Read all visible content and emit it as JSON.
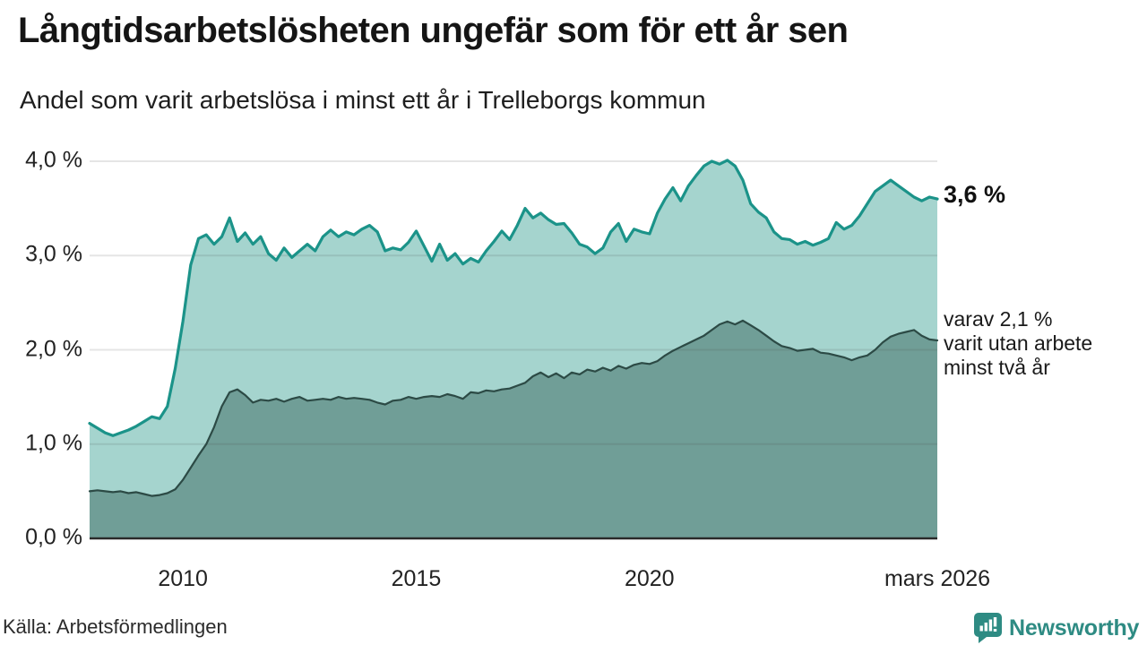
{
  "header": {
    "title": "Långtidsarbetslösheten ungefär som för ett år sen",
    "subtitle": "Andel som varit arbetslösa i minst ett år i Trelleborgs kommun"
  },
  "annotations": {
    "latest_total": "3,6 %",
    "latest_two_year_lines": [
      "varav 2,1 %",
      "varit utan arbete",
      "minst två år"
    ]
  },
  "footer": {
    "source": "Källa: Arbetsförmedlingen",
    "brand": "Newsworthy"
  },
  "colors": {
    "total_line": "#1b9389",
    "total_fill": "#a5d4ce",
    "two_year_line": "#2c4a45",
    "two_year_fill": "#709e97",
    "grid": "#444444",
    "grid_opacity": 0.14,
    "axis_line": "#2a2a2a",
    "brand": "#2e8b83",
    "text": "#222222"
  },
  "chart_data": {
    "type": "area",
    "title": "Långtidsarbetslösheten ungefär som för ett år sen",
    "subtitle": "Andel som varit arbetslösa i minst ett år i Trelleborgs kommun",
    "source": "Källa: Arbetsförmedlingen",
    "x_unit": "decimal year, monthly share of population, Trelleborgs kommun",
    "x_start": 2008.0,
    "x_end": 2026.17,
    "ylim": [
      0,
      4.0
    ],
    "grid": true,
    "legend_position": "right-annotations",
    "yticks": [
      {
        "value": 0,
        "label": "0,0 %"
      },
      {
        "value": 1.0,
        "label": "1,0 %"
      },
      {
        "value": 2.0,
        "label": "2,0 %"
      },
      {
        "value": 3.0,
        "label": "3,0 %"
      },
      {
        "value": 4.0,
        "label": "4,0 %"
      }
    ],
    "xticks": [
      {
        "value": 2010,
        "label": "2010"
      },
      {
        "value": 2015,
        "label": "2015"
      },
      {
        "value": 2020,
        "label": "2020"
      },
      {
        "value": 2026.17,
        "label": "mars 2026"
      }
    ],
    "series": [
      {
        "name": "Arbetslösa minst ett år",
        "latest_value": 3.6,
        "latest_label": "3,6 %",
        "line_color": "#1b9389",
        "fill_color": "#a5d4ce",
        "line_width": 3.2,
        "values": [
          1.22,
          1.17,
          1.12,
          1.09,
          1.12,
          1.15,
          1.19,
          1.24,
          1.29,
          1.27,
          1.4,
          1.8,
          2.3,
          2.9,
          3.18,
          3.22,
          3.12,
          3.2,
          3.4,
          3.15,
          3.24,
          3.12,
          3.2,
          3.02,
          2.95,
          3.08,
          2.98,
          3.05,
          3.12,
          3.05,
          3.2,
          3.27,
          3.2,
          3.25,
          3.22,
          3.28,
          3.32,
          3.25,
          3.05,
          3.08,
          3.06,
          3.14,
          3.26,
          3.1,
          2.94,
          3.12,
          2.95,
          3.02,
          2.91,
          2.97,
          2.93,
          3.05,
          3.15,
          3.26,
          3.17,
          3.32,
          3.5,
          3.4,
          3.45,
          3.38,
          3.33,
          3.34,
          3.24,
          3.12,
          3.09,
          3.02,
          3.08,
          3.25,
          3.34,
          3.15,
          3.28,
          3.25,
          3.23,
          3.45,
          3.6,
          3.72,
          3.58,
          3.74,
          3.85,
          3.95,
          4.0,
          3.97,
          4.01,
          3.95,
          3.8,
          3.55,
          3.46,
          3.4,
          3.25,
          3.18,
          3.17,
          3.12,
          3.15,
          3.11,
          3.14,
          3.18,
          3.35,
          3.28,
          3.32,
          3.42,
          3.55,
          3.68,
          3.74,
          3.8,
          3.74,
          3.68,
          3.62,
          3.58,
          3.62,
          3.6
        ]
      },
      {
        "name": "varav utan arbete minst två år",
        "latest_value": 2.1,
        "latest_label": "2,1 %",
        "line_color": "#2c4a45",
        "fill_color": "#709e97",
        "line_width": 2.2,
        "values": [
          0.5,
          0.51,
          0.5,
          0.49,
          0.5,
          0.48,
          0.49,
          0.47,
          0.45,
          0.46,
          0.48,
          0.52,
          0.62,
          0.75,
          0.88,
          1.0,
          1.18,
          1.4,
          1.55,
          1.58,
          1.52,
          1.44,
          1.47,
          1.46,
          1.48,
          1.45,
          1.48,
          1.5,
          1.46,
          1.47,
          1.48,
          1.47,
          1.5,
          1.48,
          1.49,
          1.48,
          1.47,
          1.44,
          1.42,
          1.46,
          1.47,
          1.5,
          1.48,
          1.5,
          1.51,
          1.5,
          1.53,
          1.51,
          1.48,
          1.55,
          1.54,
          1.57,
          1.56,
          1.58,
          1.59,
          1.62,
          1.65,
          1.72,
          1.76,
          1.71,
          1.75,
          1.7,
          1.76,
          1.74,
          1.79,
          1.77,
          1.81,
          1.78,
          1.83,
          1.8,
          1.84,
          1.86,
          1.85,
          1.88,
          1.94,
          1.99,
          2.03,
          2.07,
          2.11,
          2.15,
          2.21,
          2.27,
          2.3,
          2.27,
          2.31,
          2.26,
          2.21,
          2.15,
          2.09,
          2.04,
          2.02,
          1.99,
          2.0,
          2.01,
          1.97,
          1.96,
          1.94,
          1.92,
          1.89,
          1.92,
          1.94,
          2.0,
          2.08,
          2.14,
          2.17,
          2.19,
          2.21,
          2.15,
          2.11,
          2.1
        ]
      }
    ]
  }
}
